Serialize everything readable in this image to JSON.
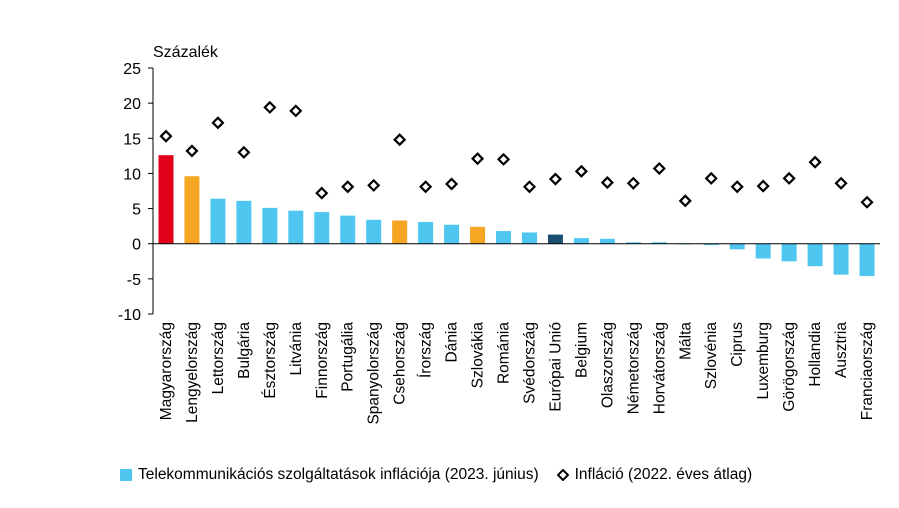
{
  "chart_data": {
    "type": "bar",
    "title": "",
    "ylabel": "Százalék",
    "xlabel": "",
    "ylim": [
      -10,
      25
    ],
    "yticks": [
      25,
      20,
      15,
      10,
      5,
      0,
      -5,
      -10
    ],
    "grid": false,
    "legend_position": "bottom",
    "categories": [
      "Magyarország",
      "Lengyelország",
      "Lettország",
      "Bulgária",
      "Észtország",
      "Litvánia",
      "Finnország",
      "Portugália",
      "Spanyolország",
      "Csehország",
      "Írország",
      "Dánia",
      "Szlovákia",
      "Románia",
      "Svédország",
      "Európai Unió",
      "Belgium",
      "Olaszország",
      "Németország",
      "Horvátország",
      "Málta",
      "Szlovénia",
      "Ciprus",
      "Luxemburg",
      "Görögország",
      "Hollandia",
      "Ausztria",
      "Franciaország"
    ],
    "series": [
      {
        "name": "Telekommunikációs szolgáltatások inflációja (2023. június)",
        "kind": "bar",
        "values": [
          12.6,
          9.6,
          6.4,
          6.1,
          5.1,
          4.7,
          4.5,
          4.0,
          3.4,
          3.3,
          3.1,
          2.7,
          2.4,
          1.8,
          1.6,
          1.3,
          0.8,
          0.7,
          0.2,
          0.2,
          -0.1,
          -0.2,
          -0.8,
          -2.1,
          -2.5,
          -3.2,
          -4.4,
          -4.6
        ],
        "colors": [
          "#e2001a",
          "#f5a623",
          "#4fc6f0",
          "#4fc6f0",
          "#4fc6f0",
          "#4fc6f0",
          "#4fc6f0",
          "#4fc6f0",
          "#4fc6f0",
          "#f5a623",
          "#4fc6f0",
          "#4fc6f0",
          "#f5a623",
          "#4fc6f0",
          "#4fc6f0",
          "#1b4f72",
          "#4fc6f0",
          "#4fc6f0",
          "#4fc6f0",
          "#4fc6f0",
          "#4fc6f0",
          "#4fc6f0",
          "#4fc6f0",
          "#4fc6f0",
          "#4fc6f0",
          "#4fc6f0",
          "#4fc6f0",
          "#4fc6f0"
        ]
      },
      {
        "name": "Infláció (2022. éves átlag)",
        "kind": "marker",
        "values": [
          15.3,
          13.2,
          17.2,
          13.0,
          19.4,
          18.9,
          7.2,
          8.1,
          8.3,
          14.8,
          8.1,
          8.5,
          12.1,
          12.0,
          8.1,
          9.2,
          10.3,
          8.7,
          8.6,
          10.7,
          6.1,
          9.3,
          8.1,
          8.2,
          9.3,
          11.6,
          8.6,
          5.9
        ],
        "color": "#000000"
      }
    ],
    "legend_color": "#4fc6f0"
  }
}
